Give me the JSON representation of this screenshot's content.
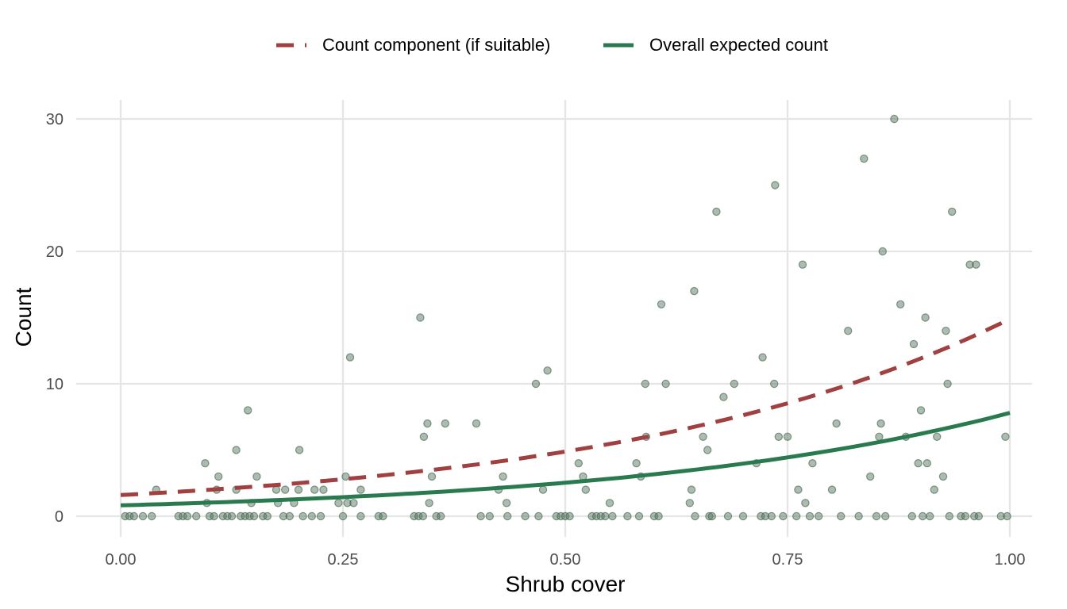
{
  "chart_data": {
    "type": "scatter",
    "xlabel": "Shrub cover",
    "ylabel": "Count",
    "xlim": [
      -0.1,
      1.05
    ],
    "ylim": [
      -1.5,
      31.5
    ],
    "x_ticks": [
      0,
      0.25,
      0.5,
      0.75,
      1
    ],
    "x_tick_labels": [
      "0.00",
      "0.25",
      "0.50",
      "0.75",
      "1.00"
    ],
    "y_ticks": [
      0,
      10,
      20,
      30
    ],
    "y_tick_labels": [
      "0",
      "10",
      "20",
      "30"
    ],
    "grid": true,
    "legend_position": "top",
    "legend": [
      {
        "label": "Count component (if suitable)",
        "style": "dashed",
        "color": "#a04040"
      },
      {
        "label": "Overall expected count",
        "style": "solid",
        "color": "#2a7a50"
      }
    ],
    "curves": [
      {
        "name": "Count component (if suitable)",
        "color": "#a04040",
        "style": "dashed",
        "x0": 0,
        "y0": 1.6,
        "x1": 1,
        "y1": 14.9
      },
      {
        "name": "Overall expected count",
        "color": "#2a7a50",
        "style": "solid",
        "x0": 0,
        "y0": 0.82,
        "x1": 1,
        "y1": 7.8
      }
    ],
    "points_color": "#5a7a64",
    "points": [
      [
        0.005,
        0
      ],
      [
        0.01,
        0
      ],
      [
        0.015,
        0
      ],
      [
        0.025,
        0
      ],
      [
        0.035,
        0
      ],
      [
        0.04,
        2
      ],
      [
        0.065,
        0
      ],
      [
        0.07,
        0
      ],
      [
        0.075,
        0
      ],
      [
        0.085,
        0
      ],
      [
        0.095,
        4
      ],
      [
        0.097,
        1
      ],
      [
        0.1,
        0
      ],
      [
        0.105,
        0
      ],
      [
        0.108,
        2
      ],
      [
        0.11,
        3
      ],
      [
        0.115,
        0
      ],
      [
        0.12,
        0
      ],
      [
        0.125,
        0
      ],
      [
        0.13,
        5
      ],
      [
        0.13,
        2
      ],
      [
        0.135,
        0
      ],
      [
        0.14,
        0
      ],
      [
        0.143,
        8
      ],
      [
        0.145,
        0
      ],
      [
        0.147,
        1
      ],
      [
        0.15,
        0
      ],
      [
        0.153,
        3
      ],
      [
        0.16,
        0
      ],
      [
        0.165,
        0
      ],
      [
        0.175,
        2
      ],
      [
        0.177,
        1
      ],
      [
        0.183,
        0
      ],
      [
        0.185,
        2
      ],
      [
        0.19,
        0
      ],
      [
        0.195,
        1
      ],
      [
        0.2,
        2
      ],
      [
        0.201,
        5
      ],
      [
        0.205,
        0
      ],
      [
        0.215,
        0
      ],
      [
        0.218,
        2
      ],
      [
        0.225,
        0
      ],
      [
        0.228,
        2
      ],
      [
        0.245,
        1
      ],
      [
        0.25,
        0
      ],
      [
        0.253,
        3
      ],
      [
        0.255,
        1
      ],
      [
        0.258,
        12
      ],
      [
        0.262,
        1
      ],
      [
        0.27,
        2
      ],
      [
        0.27,
        0
      ],
      [
        0.29,
        0
      ],
      [
        0.295,
        0
      ],
      [
        0.33,
        0
      ],
      [
        0.335,
        0
      ],
      [
        0.337,
        15
      ],
      [
        0.34,
        0
      ],
      [
        0.341,
        6
      ],
      [
        0.345,
        7
      ],
      [
        0.347,
        1
      ],
      [
        0.35,
        3
      ],
      [
        0.355,
        0
      ],
      [
        0.36,
        0
      ],
      [
        0.365,
        7
      ],
      [
        0.4,
        7
      ],
      [
        0.405,
        0
      ],
      [
        0.415,
        0
      ],
      [
        0.425,
        2
      ],
      [
        0.43,
        3
      ],
      [
        0.434,
        1
      ],
      [
        0.435,
        0
      ],
      [
        0.455,
        0
      ],
      [
        0.467,
        10
      ],
      [
        0.47,
        0
      ],
      [
        0.475,
        2
      ],
      [
        0.48,
        11
      ],
      [
        0.49,
        0
      ],
      [
        0.495,
        0
      ],
      [
        0.5,
        0
      ],
      [
        0.505,
        0
      ],
      [
        0.515,
        4
      ],
      [
        0.52,
        3
      ],
      [
        0.523,
        2
      ],
      [
        0.53,
        0
      ],
      [
        0.535,
        0
      ],
      [
        0.54,
        0
      ],
      [
        0.545,
        0
      ],
      [
        0.55,
        1
      ],
      [
        0.553,
        0
      ],
      [
        0.57,
        0
      ],
      [
        0.58,
        4
      ],
      [
        0.583,
        0
      ],
      [
        0.585,
        3
      ],
      [
        0.59,
        10
      ],
      [
        0.591,
        6
      ],
      [
        0.6,
        0
      ],
      [
        0.605,
        0
      ],
      [
        0.608,
        16
      ],
      [
        0.613,
        10
      ],
      [
        0.64,
        1
      ],
      [
        0.642,
        2
      ],
      [
        0.645,
        17
      ],
      [
        0.646,
        0
      ],
      [
        0.655,
        6
      ],
      [
        0.66,
        5
      ],
      [
        0.662,
        0
      ],
      [
        0.665,
        0
      ],
      [
        0.67,
        23
      ],
      [
        0.678,
        9
      ],
      [
        0.683,
        0
      ],
      [
        0.69,
        10
      ],
      [
        0.7,
        0
      ],
      [
        0.715,
        4
      ],
      [
        0.72,
        0
      ],
      [
        0.722,
        12
      ],
      [
        0.725,
        0
      ],
      [
        0.732,
        0
      ],
      [
        0.735,
        10
      ],
      [
        0.736,
        25
      ],
      [
        0.74,
        6
      ],
      [
        0.745,
        0
      ],
      [
        0.75,
        6
      ],
      [
        0.76,
        0
      ],
      [
        0.762,
        2
      ],
      [
        0.767,
        19
      ],
      [
        0.77,
        1
      ],
      [
        0.775,
        0
      ],
      [
        0.778,
        4
      ],
      [
        0.785,
        0
      ],
      [
        0.8,
        2
      ],
      [
        0.805,
        7
      ],
      [
        0.81,
        0
      ],
      [
        0.818,
        14
      ],
      [
        0.83,
        0
      ],
      [
        0.836,
        27
      ],
      [
        0.843,
        3
      ],
      [
        0.85,
        0
      ],
      [
        0.853,
        6
      ],
      [
        0.855,
        7
      ],
      [
        0.857,
        20
      ],
      [
        0.86,
        0
      ],
      [
        0.87,
        30
      ],
      [
        0.877,
        16
      ],
      [
        0.883,
        6
      ],
      [
        0.89,
        0
      ],
      [
        0.892,
        13
      ],
      [
        0.897,
        4
      ],
      [
        0.9,
        8
      ],
      [
        0.902,
        0
      ],
      [
        0.905,
        15
      ],
      [
        0.907,
        4
      ],
      [
        0.91,
        0
      ],
      [
        0.915,
        2
      ],
      [
        0.918,
        6
      ],
      [
        0.925,
        3
      ],
      [
        0.928,
        14
      ],
      [
        0.93,
        10
      ],
      [
        0.932,
        0
      ],
      [
        0.935,
        23
      ],
      [
        0.945,
        0
      ],
      [
        0.95,
        0
      ],
      [
        0.955,
        19
      ],
      [
        0.96,
        0
      ],
      [
        0.962,
        19
      ],
      [
        0.965,
        0
      ],
      [
        0.99,
        0
      ],
      [
        0.995,
        6
      ],
      [
        0.997,
        0
      ]
    ]
  }
}
